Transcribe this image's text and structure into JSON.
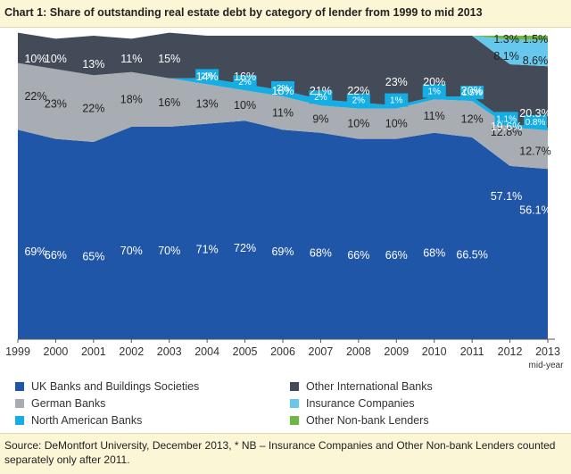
{
  "title": "Chart 1: Share of outstanding real estate debt by category of lender from 1999 to mid 2013",
  "source": "Source: DeMontfort University, December 2013, * NB – Insurance Companies and Other Non-bank Lenders counted separately only after 2011.",
  "colors": {
    "uk": "#1f56a7",
    "german": "#a7adb3",
    "north_american": "#14aee4",
    "other_international": "#434b58",
    "insurance": "#67c8ee",
    "non_bank": "#6db842",
    "title_bg": "#fbf6d6"
  },
  "legend": [
    {
      "key": "uk",
      "label": "UK Banks and Buildings Societies"
    },
    {
      "key": "other_international",
      "label": "Other International Banks"
    },
    {
      "key": "german",
      "label": "German Banks"
    },
    {
      "key": "insurance",
      "label": "Insurance Companies"
    },
    {
      "key": "north_american",
      "label": "North American Banks"
    },
    {
      "key": "non_bank",
      "label": "Other Non-bank Lenders"
    }
  ],
  "chart_data": {
    "type": "area",
    "stacked": true,
    "x": [
      "1999",
      "2000",
      "2001",
      "2002",
      "2003",
      "2004",
      "2005",
      "2006",
      "2007",
      "2008",
      "2009",
      "2010",
      "2011",
      "2012",
      "2013"
    ],
    "x_sublabels": {
      "2013": "mid-year"
    },
    "ylim": [
      0,
      100
    ],
    "series": [
      {
        "key": "uk",
        "name": "UK Banks and Buildings Societies",
        "values": [
          69,
          66,
          65,
          70,
          70,
          71,
          72,
          69,
          68,
          66,
          66,
          68,
          66.5,
          57.1,
          56.1
        ],
        "labels": [
          "69%",
          "66%",
          "65%",
          "70%",
          "70%",
          "71%",
          "72%",
          "69%",
          "68%",
          "66%",
          "66%",
          "68%",
          "66.5%",
          "57.1%",
          "56.1%"
        ]
      },
      {
        "key": "german",
        "name": "German Banks",
        "values": [
          22,
          23,
          22,
          18,
          16,
          13,
          10,
          11,
          9,
          10,
          10,
          11,
          12,
          12.8,
          12.7
        ],
        "labels": [
          "22%",
          "23%",
          "22%",
          "18%",
          "16%",
          "13%",
          "10%",
          "11%",
          "9%",
          "10%",
          "10%",
          "11%",
          "12%",
          "12.8%",
          "12.7%"
        ]
      },
      {
        "key": "north_american",
        "name": "North American Banks",
        "values": [
          0,
          0,
          0,
          0,
          0,
          2,
          2,
          2,
          2,
          2,
          1,
          1,
          1.5,
          1.1,
          0.8
        ],
        "labels": [
          "",
          "",
          "",
          "",
          "",
          "2%",
          "2%",
          "2%",
          "2%",
          "2%",
          "1%",
          "1%",
          "1.5%",
          "1.1%",
          "0.8%"
        ]
      },
      {
        "key": "other_international",
        "name": "Other International Banks",
        "values": [
          10,
          10,
          13,
          11,
          15,
          14,
          16,
          18,
          21,
          22,
          23,
          20,
          20,
          19.6,
          20.3
        ],
        "labels": [
          "10%",
          "10%",
          "13%",
          "11%",
          "15%",
          "14%",
          "16%",
          "18%",
          "21%",
          "22%",
          "23%",
          "20%",
          "20%",
          "19.6%",
          "20.3%"
        ]
      },
      {
        "key": "insurance",
        "name": "Insurance Companies",
        "values": [
          0,
          0,
          0,
          0,
          0,
          0,
          0,
          0,
          0,
          0,
          0,
          0,
          0,
          8.1,
          8.6
        ],
        "labels": [
          "",
          "",
          "",
          "",
          "",
          "",
          "",
          "",
          "",
          "",
          "",
          "",
          "",
          "8.1%",
          "8.6%"
        ]
      },
      {
        "key": "non_bank",
        "name": "Other Non-bank Lenders",
        "values": [
          0,
          0,
          0,
          0,
          0,
          0,
          0,
          0,
          0,
          0,
          0,
          0,
          0,
          1.3,
          1.5
        ],
        "labels": [
          "",
          "",
          "",
          "",
          "",
          "",
          "",
          "",
          "",
          "",
          "",
          "",
          "",
          "1.3%",
          "1.5%"
        ]
      }
    ]
  }
}
